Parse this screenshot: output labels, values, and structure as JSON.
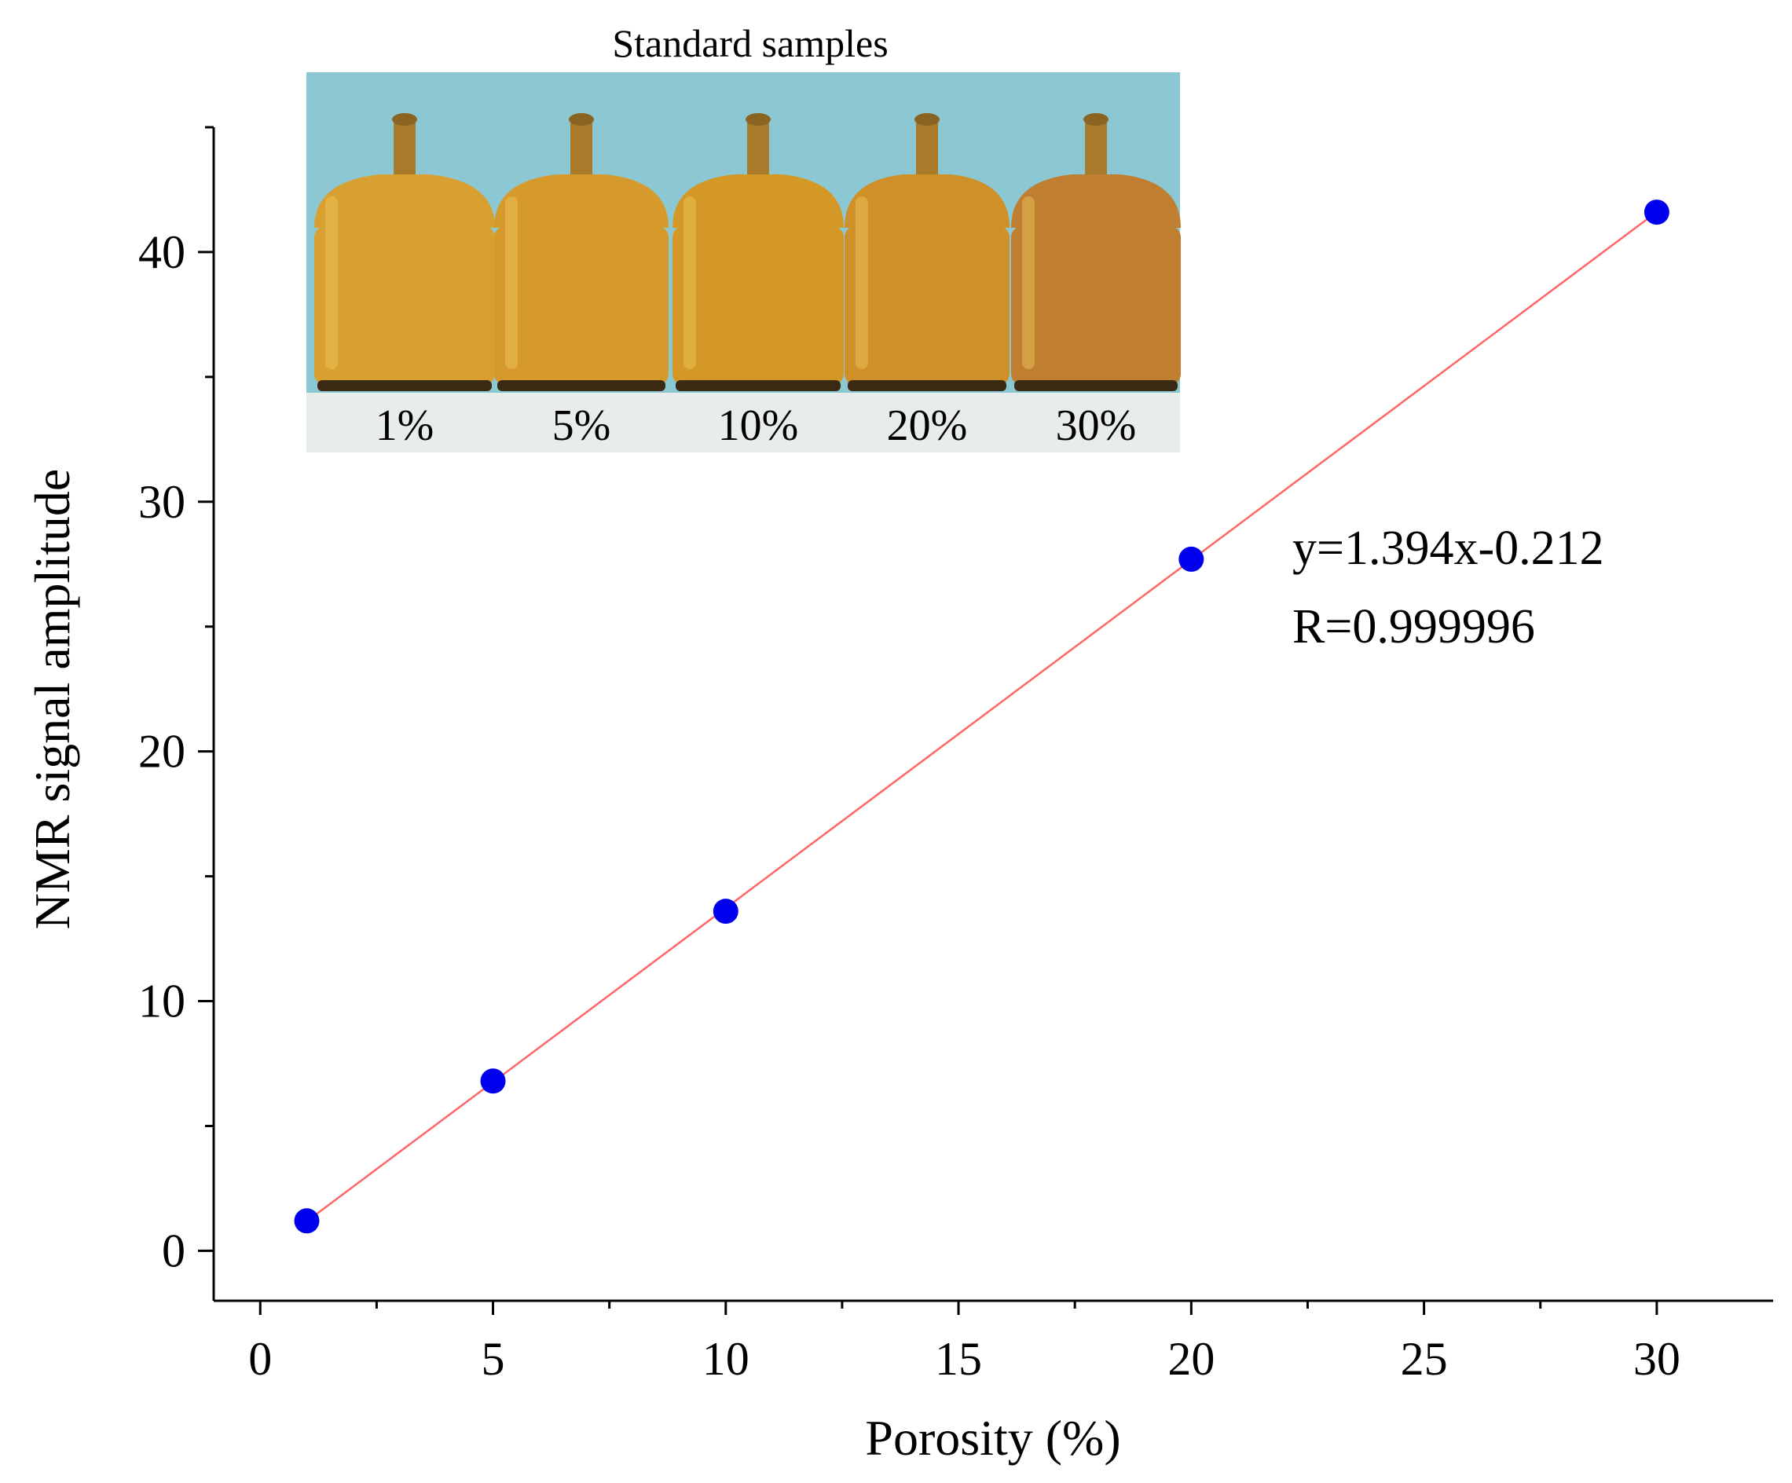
{
  "chart_data": {
    "type": "scatter",
    "xlabel": "Porosity (%)",
    "ylabel": "NMR signal amplitude",
    "xlim": [
      -1,
      32.5
    ],
    "ylim": [
      -2,
      45
    ],
    "x_ticks": [
      0,
      5,
      10,
      15,
      20,
      25,
      30
    ],
    "y_ticks": [
      0,
      10,
      20,
      30,
      40
    ],
    "x_tick_labels": [
      "0",
      "5",
      "10",
      "15",
      "20",
      "25",
      "30"
    ],
    "y_tick_labels": [
      "0",
      "10",
      "20",
      "30",
      "40"
    ],
    "x_minor_step": 2.5,
    "y_minor_step": 5,
    "grid": false,
    "series": [
      {
        "name": "Standard samples",
        "marker_color": "#0000ee",
        "points": [
          {
            "x": 1,
            "y": 1.2
          },
          {
            "x": 5,
            "y": 6.8
          },
          {
            "x": 10,
            "y": 13.6
          },
          {
            "x": 20,
            "y": 27.7
          },
          {
            "x": 30,
            "y": 41.6
          }
        ]
      }
    ],
    "fit_line": {
      "slope": 1.394,
      "intercept": -0.212,
      "x_range": [
        1,
        30
      ],
      "color": "#ff6666"
    },
    "annotations": {
      "equation": "y=1.394x-0.212",
      "r_value": "R=0.999996"
    }
  },
  "inset": {
    "title": "Standard samples",
    "background_color": "#8cc8d4",
    "samples": [
      {
        "label": "1%",
        "color": "#d8a030"
      },
      {
        "label": "5%",
        "color": "#d69a2c"
      },
      {
        "label": "10%",
        "color": "#d49826"
      },
      {
        "label": "20%",
        "color": "#d09028"
      },
      {
        "label": "30%",
        "color": "#c07e30"
      }
    ]
  }
}
